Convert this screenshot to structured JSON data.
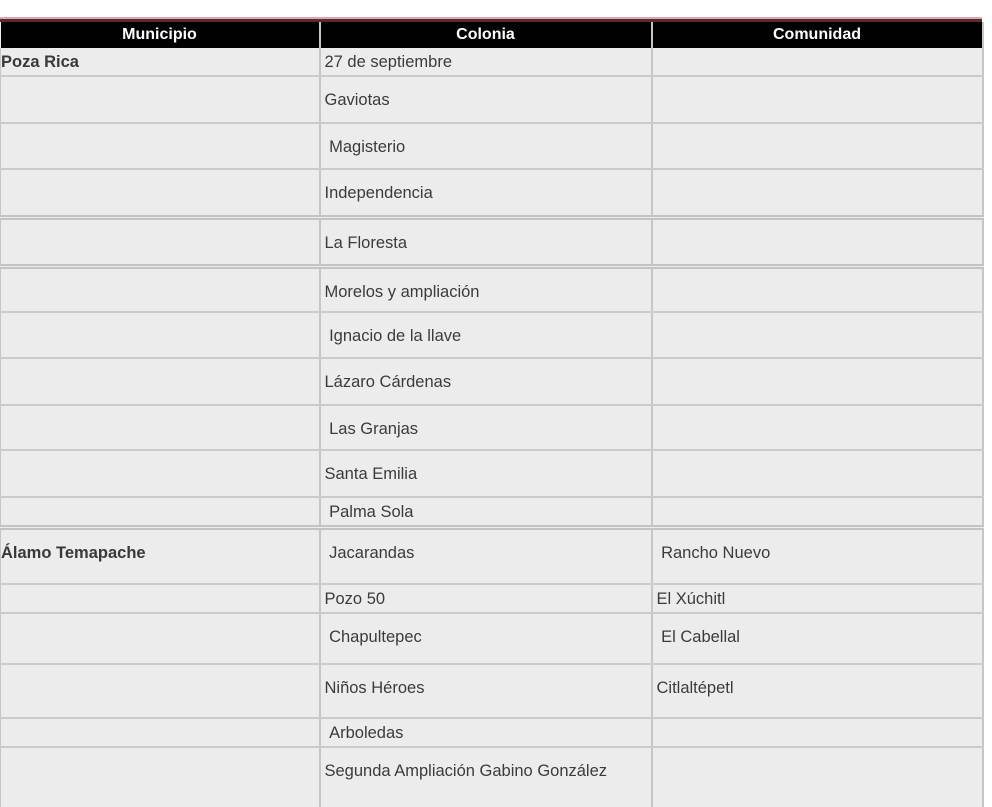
{
  "page": {
    "background": "#ffffff",
    "description": "Document table of municipalities, colonias and communities"
  },
  "colors": {
    "header_bg": "#010101",
    "header_text": "#ffffff",
    "row_bg": "#ececec",
    "body_text": "#3b3b3b",
    "grid_border": "#c6c6c6",
    "accent_pink": "#dca9b2",
    "accent_maroon": "#5a2a34"
  },
  "table": {
    "columns": [
      {
        "key": "municipio",
        "label": "Municipio"
      },
      {
        "key": "colonia",
        "label": "Colonia"
      },
      {
        "key": "comunidad",
        "label": "Comunidad"
      }
    ],
    "rows": [
      {
        "municipio": "Poza Rica",
        "colonia": "27 de septiembre",
        "comunidad": "",
        "h": 27,
        "short": true,
        "thick": false
      },
      {
        "municipio": "",
        "colonia": "Gaviotas",
        "comunidad": "",
        "h": 47,
        "short": false,
        "thick": false
      },
      {
        "municipio": "",
        "colonia": " Magisterio",
        "comunidad": "",
        "h": 46,
        "short": false,
        "thick": false
      },
      {
        "municipio": "",
        "colonia": "Independencia",
        "comunidad": "",
        "h": 48,
        "short": false,
        "thick": true
      },
      {
        "municipio": "",
        "colonia": "La Floresta",
        "comunidad": "",
        "h": 49,
        "short": false,
        "thick": true
      },
      {
        "municipio": "",
        "colonia": "Morelos y ampliación",
        "comunidad": "",
        "h": 46,
        "short": false,
        "thick": false
      },
      {
        "municipio": "",
        "colonia": " Ignacio de la llave",
        "comunidad": "",
        "h": 46,
        "short": false,
        "thick": false
      },
      {
        "municipio": "",
        "colonia": "Lázaro Cárdenas",
        "comunidad": "",
        "h": 47,
        "short": false,
        "thick": false
      },
      {
        "municipio": "",
        "colonia": " Las Granjas",
        "comunidad": "",
        "h": 45,
        "short": false,
        "thick": false
      },
      {
        "municipio": "",
        "colonia": "Santa Emilia",
        "comunidad": "",
        "h": 47,
        "short": false,
        "thick": false
      },
      {
        "municipio": "",
        "colonia": " Palma Sola",
        "comunidad": "",
        "h": 27,
        "short": true,
        "thick": true
      },
      {
        "municipio": "Álamo Temapache",
        "colonia": " Jacarandas",
        "comunidad": " Rancho Nuevo",
        "h": 56,
        "short": false,
        "thick": false
      },
      {
        "municipio": "",
        "colonia": "Pozo 50",
        "comunidad": "El Xúchitl",
        "h": 29,
        "short": true,
        "thick": false
      },
      {
        "municipio": "",
        "colonia": " Chapultepec",
        "comunidad": " El Cabellal",
        "h": 51,
        "short": false,
        "thick": false
      },
      {
        "municipio": "",
        "colonia": "Niños Héroes",
        "comunidad": "Citlaltépetl",
        "h": 54,
        "short": false,
        "thick": false
      },
      {
        "municipio": "",
        "colonia": " Arboledas",
        "comunidad": "",
        "h": 27,
        "short": true,
        "thick": false
      },
      {
        "municipio": "",
        "colonia": "Segunda Ampliación Gabino González",
        "comunidad": "",
        "h": 70,
        "short": false,
        "thick": false
      }
    ]
  }
}
